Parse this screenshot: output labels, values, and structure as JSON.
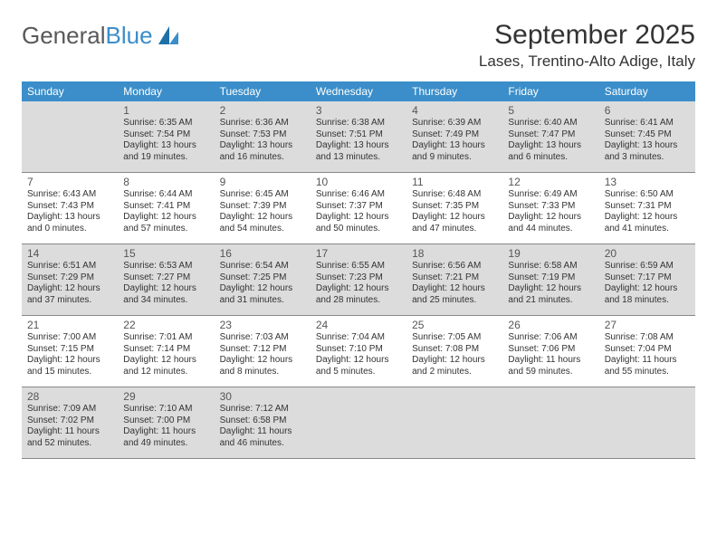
{
  "logo": {
    "part1": "General",
    "part2": "Blue"
  },
  "title": "September 2025",
  "location": "Lases, Trentino-Alto Adige, Italy",
  "colors": {
    "header_bg": "#3b8ec9",
    "header_text": "#ffffff",
    "shade_bg": "#dcdcdc",
    "border": "#888888",
    "text": "#333333",
    "logo_gray": "#595959",
    "logo_blue": "#3b8ec9"
  },
  "days_of_week": [
    "Sunday",
    "Monday",
    "Tuesday",
    "Wednesday",
    "Thursday",
    "Friday",
    "Saturday"
  ],
  "weeks": [
    [
      {
        "n": "",
        "shaded": true,
        "lines": []
      },
      {
        "n": "1",
        "shaded": true,
        "lines": [
          "Sunrise: 6:35 AM",
          "Sunset: 7:54 PM",
          "Daylight: 13 hours and 19 minutes."
        ]
      },
      {
        "n": "2",
        "shaded": true,
        "lines": [
          "Sunrise: 6:36 AM",
          "Sunset: 7:53 PM",
          "Daylight: 13 hours and 16 minutes."
        ]
      },
      {
        "n": "3",
        "shaded": true,
        "lines": [
          "Sunrise: 6:38 AM",
          "Sunset: 7:51 PM",
          "Daylight: 13 hours and 13 minutes."
        ]
      },
      {
        "n": "4",
        "shaded": true,
        "lines": [
          "Sunrise: 6:39 AM",
          "Sunset: 7:49 PM",
          "Daylight: 13 hours and 9 minutes."
        ]
      },
      {
        "n": "5",
        "shaded": true,
        "lines": [
          "Sunrise: 6:40 AM",
          "Sunset: 7:47 PM",
          "Daylight: 13 hours and 6 minutes."
        ]
      },
      {
        "n": "6",
        "shaded": true,
        "lines": [
          "Sunrise: 6:41 AM",
          "Sunset: 7:45 PM",
          "Daylight: 13 hours and 3 minutes."
        ]
      }
    ],
    [
      {
        "n": "7",
        "shaded": false,
        "lines": [
          "Sunrise: 6:43 AM",
          "Sunset: 7:43 PM",
          "Daylight: 13 hours and 0 minutes."
        ]
      },
      {
        "n": "8",
        "shaded": false,
        "lines": [
          "Sunrise: 6:44 AM",
          "Sunset: 7:41 PM",
          "Daylight: 12 hours and 57 minutes."
        ]
      },
      {
        "n": "9",
        "shaded": false,
        "lines": [
          "Sunrise: 6:45 AM",
          "Sunset: 7:39 PM",
          "Daylight: 12 hours and 54 minutes."
        ]
      },
      {
        "n": "10",
        "shaded": false,
        "lines": [
          "Sunrise: 6:46 AM",
          "Sunset: 7:37 PM",
          "Daylight: 12 hours and 50 minutes."
        ]
      },
      {
        "n": "11",
        "shaded": false,
        "lines": [
          "Sunrise: 6:48 AM",
          "Sunset: 7:35 PM",
          "Daylight: 12 hours and 47 minutes."
        ]
      },
      {
        "n": "12",
        "shaded": false,
        "lines": [
          "Sunrise: 6:49 AM",
          "Sunset: 7:33 PM",
          "Daylight: 12 hours and 44 minutes."
        ]
      },
      {
        "n": "13",
        "shaded": false,
        "lines": [
          "Sunrise: 6:50 AM",
          "Sunset: 7:31 PM",
          "Daylight: 12 hours and 41 minutes."
        ]
      }
    ],
    [
      {
        "n": "14",
        "shaded": true,
        "lines": [
          "Sunrise: 6:51 AM",
          "Sunset: 7:29 PM",
          "Daylight: 12 hours and 37 minutes."
        ]
      },
      {
        "n": "15",
        "shaded": true,
        "lines": [
          "Sunrise: 6:53 AM",
          "Sunset: 7:27 PM",
          "Daylight: 12 hours and 34 minutes."
        ]
      },
      {
        "n": "16",
        "shaded": true,
        "lines": [
          "Sunrise: 6:54 AM",
          "Sunset: 7:25 PM",
          "Daylight: 12 hours and 31 minutes."
        ]
      },
      {
        "n": "17",
        "shaded": true,
        "lines": [
          "Sunrise: 6:55 AM",
          "Sunset: 7:23 PM",
          "Daylight: 12 hours and 28 minutes."
        ]
      },
      {
        "n": "18",
        "shaded": true,
        "lines": [
          "Sunrise: 6:56 AM",
          "Sunset: 7:21 PM",
          "Daylight: 12 hours and 25 minutes."
        ]
      },
      {
        "n": "19",
        "shaded": true,
        "lines": [
          "Sunrise: 6:58 AM",
          "Sunset: 7:19 PM",
          "Daylight: 12 hours and 21 minutes."
        ]
      },
      {
        "n": "20",
        "shaded": true,
        "lines": [
          "Sunrise: 6:59 AM",
          "Sunset: 7:17 PM",
          "Daylight: 12 hours and 18 minutes."
        ]
      }
    ],
    [
      {
        "n": "21",
        "shaded": false,
        "lines": [
          "Sunrise: 7:00 AM",
          "Sunset: 7:15 PM",
          "Daylight: 12 hours and 15 minutes."
        ]
      },
      {
        "n": "22",
        "shaded": false,
        "lines": [
          "Sunrise: 7:01 AM",
          "Sunset: 7:14 PM",
          "Daylight: 12 hours and 12 minutes."
        ]
      },
      {
        "n": "23",
        "shaded": false,
        "lines": [
          "Sunrise: 7:03 AM",
          "Sunset: 7:12 PM",
          "Daylight: 12 hours and 8 minutes."
        ]
      },
      {
        "n": "24",
        "shaded": false,
        "lines": [
          "Sunrise: 7:04 AM",
          "Sunset: 7:10 PM",
          "Daylight: 12 hours and 5 minutes."
        ]
      },
      {
        "n": "25",
        "shaded": false,
        "lines": [
          "Sunrise: 7:05 AM",
          "Sunset: 7:08 PM",
          "Daylight: 12 hours and 2 minutes."
        ]
      },
      {
        "n": "26",
        "shaded": false,
        "lines": [
          "Sunrise: 7:06 AM",
          "Sunset: 7:06 PM",
          "Daylight: 11 hours and 59 minutes."
        ]
      },
      {
        "n": "27",
        "shaded": false,
        "lines": [
          "Sunrise: 7:08 AM",
          "Sunset: 7:04 PM",
          "Daylight: 11 hours and 55 minutes."
        ]
      }
    ],
    [
      {
        "n": "28",
        "shaded": true,
        "lines": [
          "Sunrise: 7:09 AM",
          "Sunset: 7:02 PM",
          "Daylight: 11 hours and 52 minutes."
        ]
      },
      {
        "n": "29",
        "shaded": true,
        "lines": [
          "Sunrise: 7:10 AM",
          "Sunset: 7:00 PM",
          "Daylight: 11 hours and 49 minutes."
        ]
      },
      {
        "n": "30",
        "shaded": true,
        "lines": [
          "Sunrise: 7:12 AM",
          "Sunset: 6:58 PM",
          "Daylight: 11 hours and 46 minutes."
        ]
      },
      {
        "n": "",
        "shaded": true,
        "lines": []
      },
      {
        "n": "",
        "shaded": true,
        "lines": []
      },
      {
        "n": "",
        "shaded": true,
        "lines": []
      },
      {
        "n": "",
        "shaded": true,
        "lines": []
      }
    ]
  ]
}
